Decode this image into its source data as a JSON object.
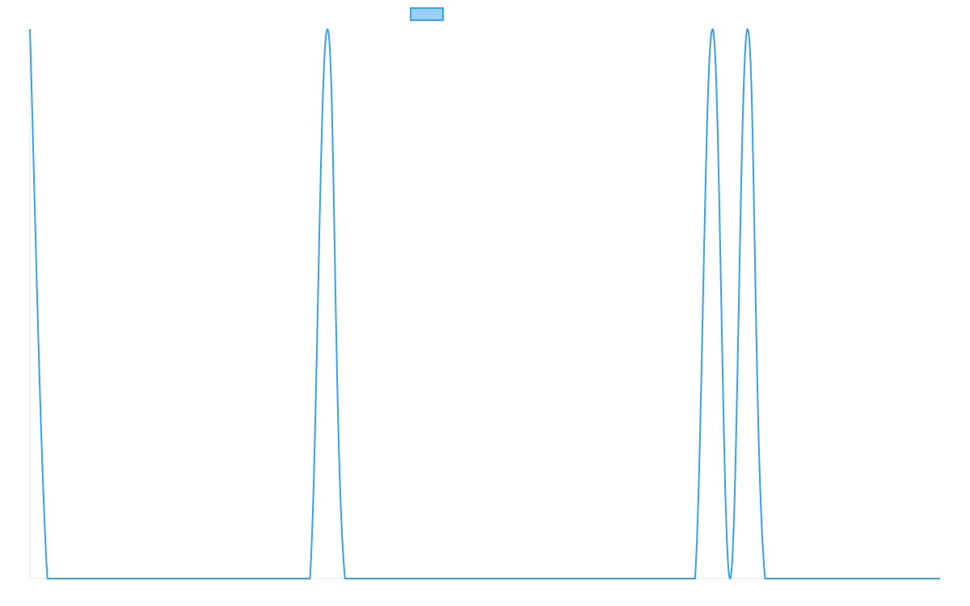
{
  "chart_data": {
    "type": "line",
    "title": "",
    "xlabel": "",
    "ylabel": "",
    "x": [
      0,
      0.5,
      1,
      2,
      3,
      4,
      5,
      6,
      7,
      7.5,
      8,
      8.5,
      9,
      10,
      11,
      12,
      13,
      14,
      15,
      16,
      17,
      18,
      18.5,
      19,
      19.5,
      20,
      20.5,
      21,
      22,
      23,
      24,
      25,
      26
    ],
    "xlim": [
      0,
      26
    ],
    "ylim": [
      0,
      1
    ],
    "series": [
      {
        "name": "",
        "color": "#36a2eb",
        "fill": "#9ad0f5",
        "tension": 0.4,
        "values": [
          1,
          0,
          0,
          0,
          0,
          0,
          0,
          0,
          0,
          0,
          0,
          1,
          0,
          0,
          0,
          0,
          0,
          0,
          0,
          0,
          0,
          0,
          0,
          0,
          1,
          0,
          1,
          0,
          0,
          0,
          0,
          0,
          0
        ]
      }
    ],
    "grid": false,
    "legend": "top-center"
  }
}
